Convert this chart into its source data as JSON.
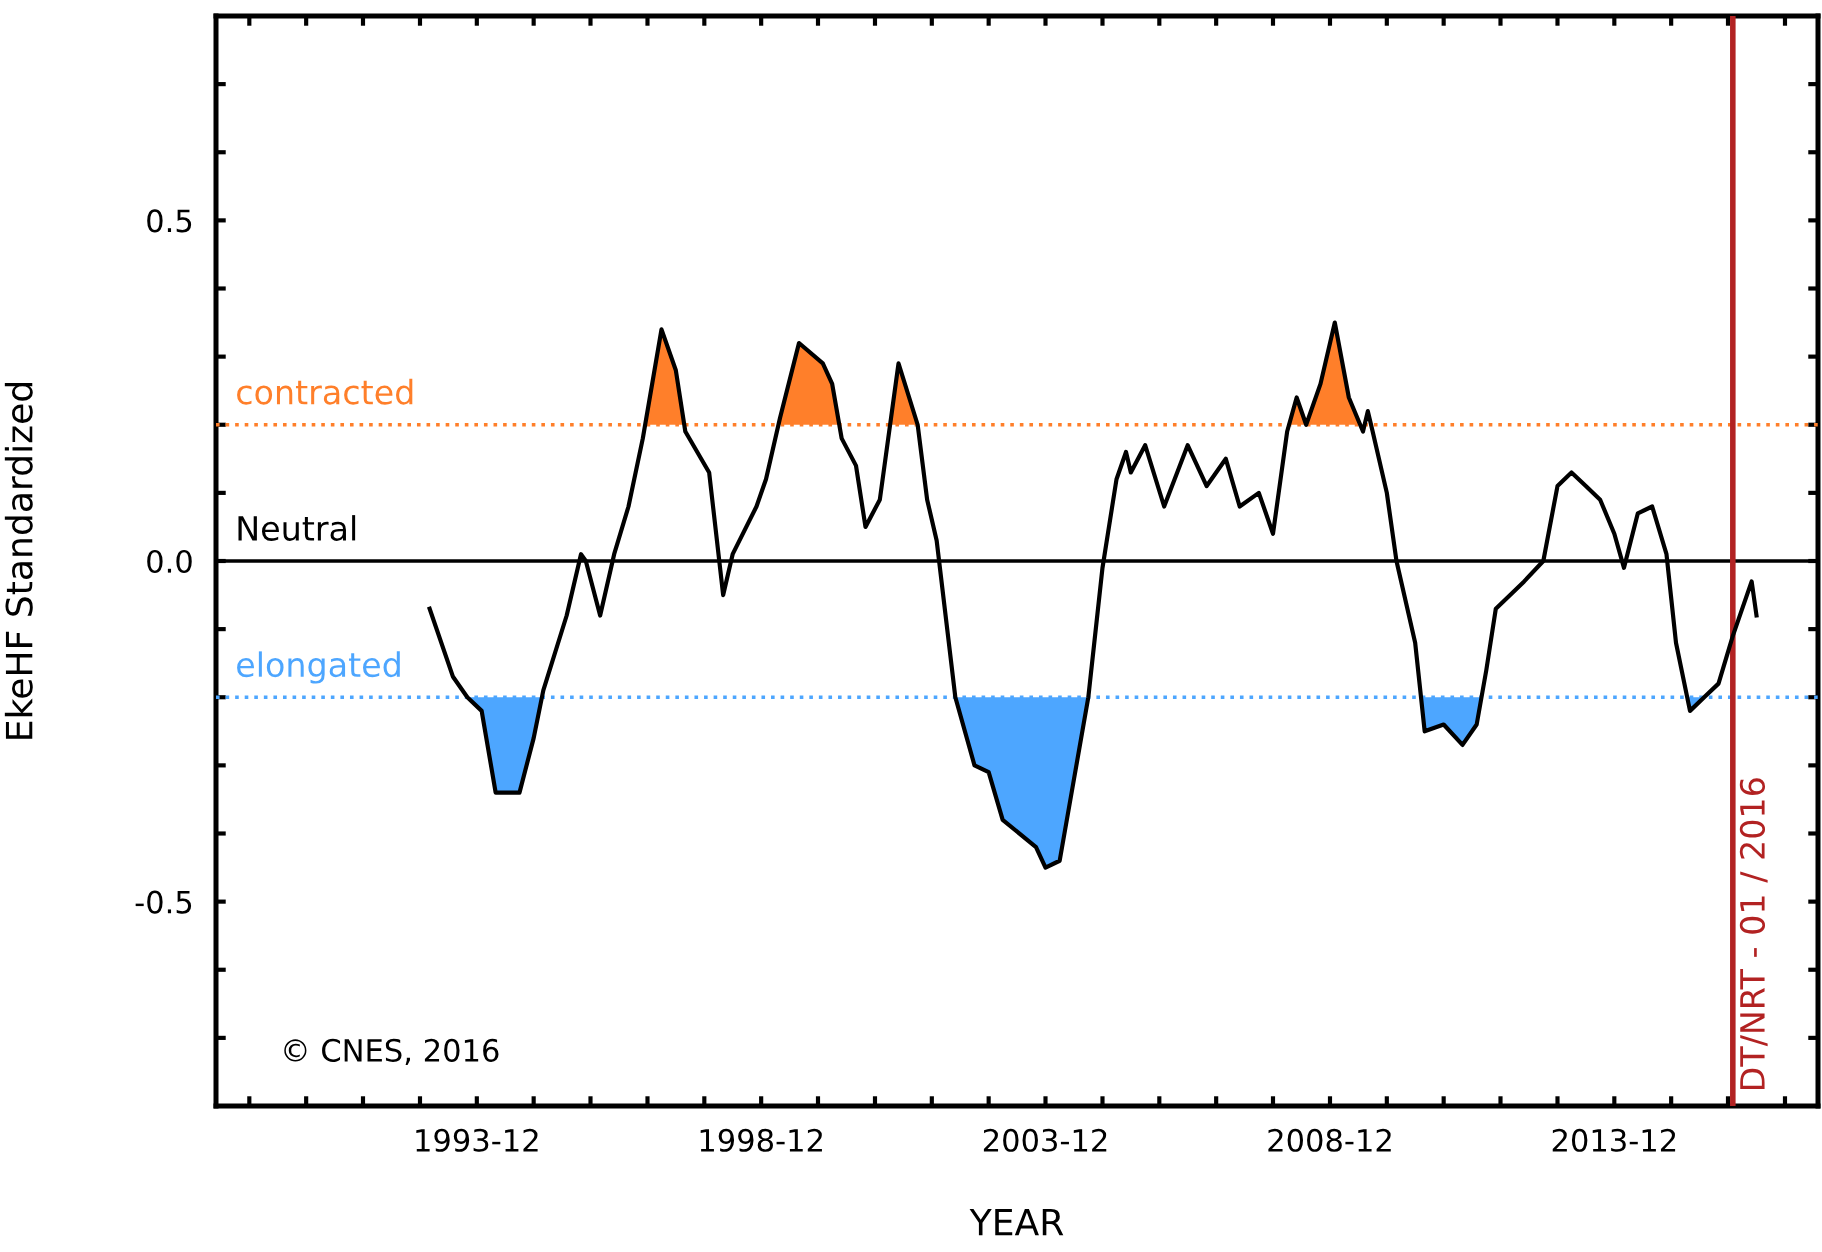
{
  "chart_data": {
    "type": "line",
    "xlabel": "YEAR",
    "ylabel": "EkeHF Standardized",
    "x": [
      "1993-02",
      "1993-07",
      "1993-10",
      "1994-01",
      "1994-04",
      "1994-09",
      "1994-12",
      "1995-02",
      "1995-07",
      "1995-10",
      "1995-11",
      "1996-02",
      "1996-05",
      "1996-08",
      "1996-11",
      "1997-03",
      "1997-06",
      "1997-08",
      "1998-01",
      "1998-04",
      "1998-06",
      "1998-11",
      "1999-01",
      "1999-04",
      "1999-08",
      "2000-01",
      "2000-03",
      "2000-05",
      "2000-08",
      "2000-10",
      "2001-01",
      "2001-05",
      "2001-09",
      "2001-11",
      "2002-01",
      "2002-05",
      "2002-09",
      "2002-12",
      "2003-03",
      "2003-10",
      "2003-12",
      "2004-03",
      "2004-06",
      "2004-09",
      "2004-12",
      "2005-03",
      "2005-05",
      "2005-06",
      "2005-09",
      "2006-01",
      "2006-06",
      "2006-10",
      "2006-12",
      "2007-02",
      "2007-05",
      "2007-09",
      "2007-12",
      "2008-03",
      "2008-05",
      "2008-07",
      "2008-10",
      "2009-01",
      "2009-04",
      "2009-07",
      "2009-08",
      "2009-09",
      "2009-12",
      "2010-02",
      "2010-06",
      "2010-08",
      "2010-12",
      "2011-04",
      "2011-07",
      "2011-09",
      "2011-11",
      "2012-02",
      "2012-05",
      "2012-09",
      "2012-12",
      "2013-03",
      "2013-06",
      "2013-09",
      "2013-12",
      "2014-02",
      "2014-05",
      "2014-08",
      "2014-11",
      "2015-01",
      "2015-04",
      "2015-07",
      "2015-10",
      "2016-01",
      "2016-05",
      "2016-06"
    ],
    "series": [
      {
        "type": "area",
        "color": "#ff7f2a",
        "x": [
          "1996-11-16",
          "1997-03",
          "1997-06",
          "1997-07-28"
        ],
        "values": [
          0.2,
          0.34,
          0.28,
          0.2
        ]
      },
      {
        "type": "area",
        "color": "#ff7f2a",
        "x": [
          "1999-03-21",
          "1999-04",
          "1999-08",
          "2000-01",
          "2000-03",
          "2000-04-16"
        ],
        "values": [
          0.2,
          0.21,
          0.32,
          0.29,
          0.26,
          0.2
        ]
      },
      {
        "type": "area",
        "color": "#ff7f2a",
        "x": [
          "2001-03-07",
          "2001-05",
          "2001-09"
        ],
        "values": [
          0.2,
          0.29,
          0.2
        ]
      },
      {
        "type": "area",
        "color": "#ff7f2a",
        "x": [
          "2008-03-13",
          "2008-05",
          "2008-07",
          "2008-10",
          "2009-01",
          "2009-04",
          "2009-06-13"
        ],
        "values": [
          0.2,
          0.24,
          0.2,
          0.26,
          0.35,
          0.24,
          0.2
        ]
      },
      {
        "type": "area",
        "color": "#4da6ff",
        "x": [
          "1993-10",
          "1994-01",
          "1994-04",
          "1994-09",
          "1994-12",
          "1995-01-22"
        ],
        "values": [
          -0.2,
          -0.22,
          -0.34,
          -0.34,
          -0.26,
          -0.2
        ]
      },
      {
        "type": "area",
        "color": "#4da6ff",
        "x": [
          "2002-05",
          "2002-09",
          "2002-12",
          "2003-03",
          "2003-10",
          "2003-12",
          "2004-03",
          "2004-06",
          "2004-09"
        ],
        "values": [
          -0.2,
          -0.3,
          -0.31,
          -0.38,
          -0.42,
          -0.45,
          -0.44,
          -0.32,
          -0.2
        ]
      },
      {
        "type": "area",
        "color": "#4da6ff",
        "x": [
          "2010-07-08",
          "2010-08",
          "2010-12",
          "2011-04",
          "2011-07",
          "2011-08-01"
        ],
        "values": [
          -0.2,
          -0.25,
          -0.24,
          -0.27,
          -0.24,
          -0.2
        ]
      },
      {
        "type": "area",
        "color": "#4da6ff",
        "x": [
          "2015-03-13",
          "2015-04",
          "2015-07"
        ],
        "values": [
          -0.2,
          -0.22,
          -0.2
        ]
      },
      {
        "color": "#000000",
        "values": [
          -0.07,
          -0.17,
          -0.2,
          -0.22,
          -0.34,
          -0.34,
          -0.26,
          -0.19,
          -0.08,
          0.01,
          0.0,
          -0.08,
          0.01,
          0.08,
          0.18,
          0.34,
          0.28,
          0.19,
          0.13,
          -0.05,
          0.01,
          0.08,
          0.12,
          0.21,
          0.32,
          0.29,
          0.26,
          0.18,
          0.14,
          0.05,
          0.09,
          0.29,
          0.2,
          0.09,
          0.03,
          -0.2,
          -0.3,
          -0.31,
          -0.38,
          -0.42,
          -0.45,
          -0.44,
          -0.32,
          -0.2,
          -0.01,
          0.12,
          0.16,
          0.13,
          0.17,
          0.08,
          0.17,
          0.11,
          0.13,
          0.15,
          0.08,
          0.1,
          0.04,
          0.19,
          0.24,
          0.2,
          0.26,
          0.35,
          0.24,
          0.19,
          0.22,
          0.19,
          0.1,
          0.0,
          -0.12,
          -0.25,
          -0.24,
          -0.27,
          -0.24,
          -0.16,
          -0.07,
          -0.05,
          -0.03,
          0.0,
          0.11,
          0.13,
          0.11,
          0.09,
          0.04,
          -0.01,
          0.07,
          0.08,
          0.01,
          -0.12,
          -0.22,
          -0.2,
          -0.18,
          -0.11,
          -0.03,
          -0.08
        ]
      }
    ],
    "xlim": [
      "1989-05",
      "2017-07"
    ],
    "ylim": [
      -0.8,
      0.8
    ],
    "xticks": [
      {
        "value": "1989-12",
        "label": null
      },
      {
        "value": "1990-12",
        "label": null
      },
      {
        "value": "1991-12",
        "label": null
      },
      {
        "value": "1992-12",
        "label": null
      },
      {
        "value": "1993-12",
        "label": "1993-12"
      },
      {
        "value": "1994-12",
        "label": null
      },
      {
        "value": "1995-12",
        "label": null
      },
      {
        "value": "1996-12",
        "label": null
      },
      {
        "value": "1997-12",
        "label": null
      },
      {
        "value": "1998-12",
        "label": "1998-12"
      },
      {
        "value": "1999-12",
        "label": null
      },
      {
        "value": "2000-12",
        "label": null
      },
      {
        "value": "2001-12",
        "label": null
      },
      {
        "value": "2002-12",
        "label": null
      },
      {
        "value": "2003-12",
        "label": "2003-12"
      },
      {
        "value": "2004-12",
        "label": null
      },
      {
        "value": "2005-12",
        "label": null
      },
      {
        "value": "2006-12",
        "label": null
      },
      {
        "value": "2007-12",
        "label": null
      },
      {
        "value": "2008-12",
        "label": "2008-12"
      },
      {
        "value": "2009-12",
        "label": null
      },
      {
        "value": "2010-12",
        "label": null
      },
      {
        "value": "2011-12",
        "label": null
      },
      {
        "value": "2012-12",
        "label": null
      },
      {
        "value": "2013-12",
        "label": "2013-12"
      },
      {
        "value": "2014-12",
        "label": null
      },
      {
        "value": "2015-12",
        "label": null
      },
      {
        "value": "2016-12",
        "label": null
      }
    ],
    "yticks": [
      {
        "value": -0.7,
        "label": null
      },
      {
        "value": -0.6,
        "label": null
      },
      {
        "value": -0.5,
        "label": "-0.5"
      },
      {
        "value": -0.4,
        "label": null
      },
      {
        "value": -0.3,
        "label": null
      },
      {
        "value": -0.2,
        "label": null
      },
      {
        "value": -0.1,
        "label": null
      },
      {
        "value": 0.0,
        "label": "0.0"
      },
      {
        "value": 0.1,
        "label": null
      },
      {
        "value": 0.2,
        "label": null
      },
      {
        "value": 0.3,
        "label": null
      },
      {
        "value": 0.4,
        "label": null
      },
      {
        "value": 0.5,
        "label": "0.5"
      },
      {
        "value": 0.6,
        "label": null
      },
      {
        "value": 0.7,
        "label": null
      }
    ],
    "ref_lines": [
      {
        "axis": "y",
        "value": 0.2,
        "label": "contracted",
        "color": "#ff7f2a",
        "line_style": "dotted"
      },
      {
        "axis": "y",
        "value": 0.0,
        "label": "Neutral",
        "color": "#000000",
        "line_style": "solid"
      },
      {
        "axis": "y",
        "value": -0.2,
        "label": "elongated",
        "color": "#4da6ff",
        "line_style": "dotted"
      },
      {
        "axis": "x",
        "value": "2016-01",
        "label": "DT/NRT - 01 / 2016",
        "color": "#b22222",
        "line_style": "solid"
      }
    ],
    "annotations": [
      "© CNES, 2016"
    ],
    "grid": false,
    "marker": "none",
    "line_style": "solid"
  }
}
